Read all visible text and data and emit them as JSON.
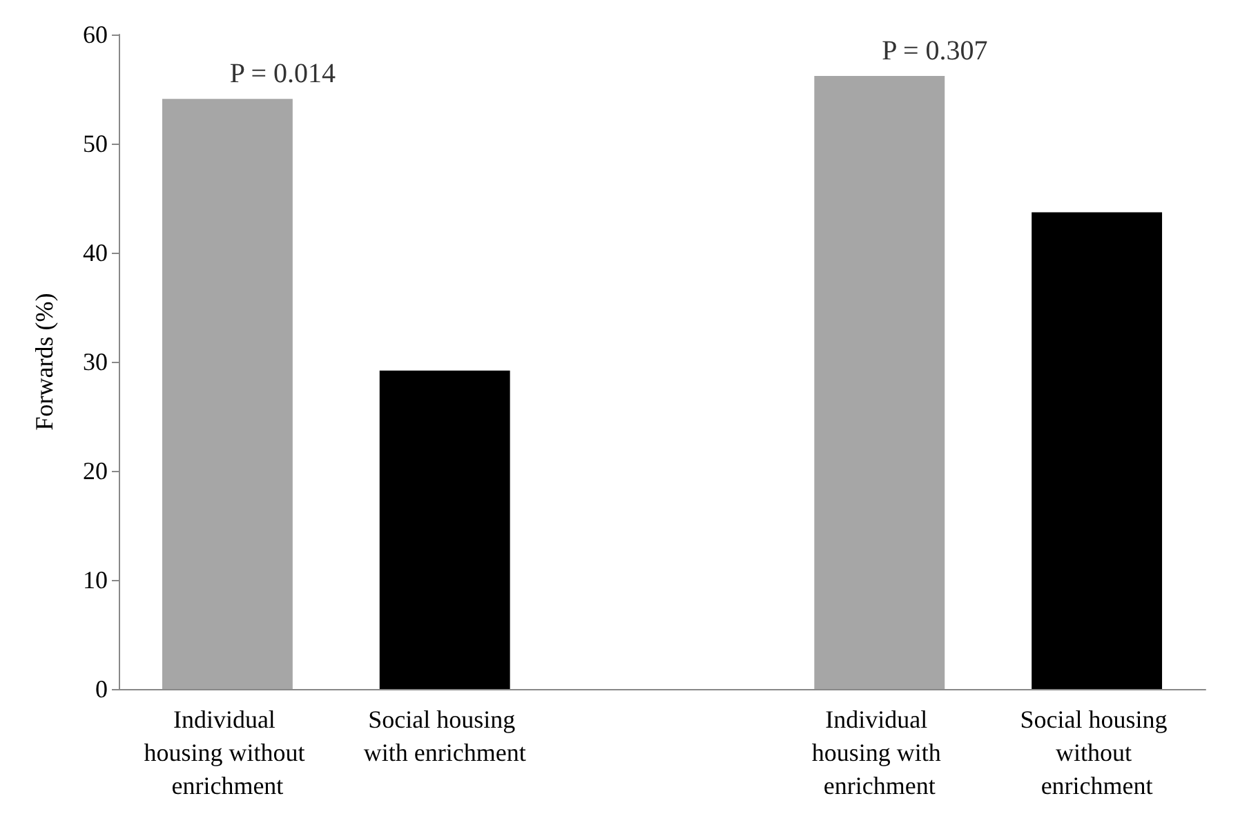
{
  "chart_data": {
    "type": "bar",
    "ylabel": "Forwards (%)",
    "categories": [
      "Individual housing without enrichment",
      "Social housing with enrichment",
      null,
      "Individual housing with enrichment",
      "Social housing without enrichment"
    ],
    "values": [
      54.1,
      29.2,
      null,
      56.2,
      43.7
    ],
    "colors": [
      "#a6a6a6",
      "#000000",
      "#000000",
      "#a6a6a6",
      "#000000"
    ],
    "ylim": [
      0,
      60
    ],
    "yticks": [
      0,
      10,
      20,
      30,
      40,
      50,
      60
    ],
    "grid": false,
    "annotations": [
      "P = 0.014",
      "P = 0.307"
    ]
  }
}
